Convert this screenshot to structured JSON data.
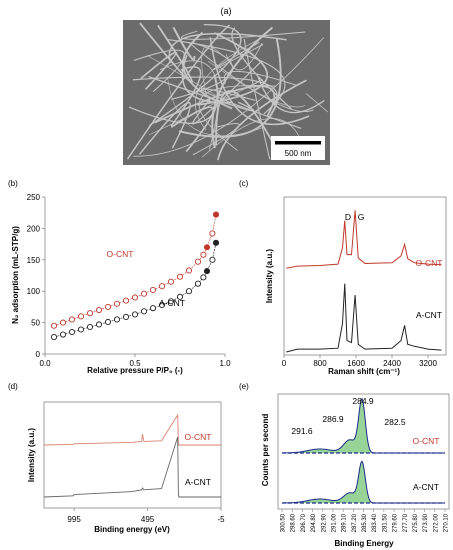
{
  "panels": [
    {
      "id": "a",
      "label": "(a)",
      "scale_bar": "500 nm"
    },
    {
      "id": "b",
      "label": "(b)"
    },
    {
      "id": "c",
      "label": "(c)"
    },
    {
      "id": "d",
      "label": "(d)"
    },
    {
      "id": "e",
      "label": "(e)"
    }
  ],
  "colors": {
    "o_cnt": "#c0392b",
    "a_cnt": "#222222",
    "fill": "#44b044",
    "fit": "#1a2b8a"
  },
  "chart_data": [
    {
      "panel": "b",
      "type": "scatter",
      "xlabel": "Relative pressure P/P₀ (-)",
      "ylabel": "N₂ adsorption (mL-STP/g)",
      "xlim": [
        0,
        1
      ],
      "ylim": [
        0,
        250
      ],
      "xticks": [
        "0.0",
        "0.5",
        "1.0"
      ],
      "yticks": [
        "0",
        "50",
        "100",
        "150",
        "200",
        "250"
      ],
      "series": [
        {
          "name": "O-CNT",
          "x": [
            0.05,
            0.1,
            0.15,
            0.2,
            0.25,
            0.3,
            0.35,
            0.4,
            0.45,
            0.5,
            0.55,
            0.6,
            0.65,
            0.7,
            0.75,
            0.8,
            0.85,
            0.88,
            0.9,
            0.93,
            0.95
          ],
          "y": [
            45,
            50,
            55,
            60,
            65,
            70,
            75,
            80,
            85,
            90,
            96,
            102,
            108,
            115,
            123,
            133,
            147,
            158,
            170,
            192,
            222
          ]
        },
        {
          "name": "A-CNT",
          "x": [
            0.05,
            0.1,
            0.15,
            0.2,
            0.25,
            0.3,
            0.35,
            0.4,
            0.45,
            0.5,
            0.55,
            0.6,
            0.65,
            0.7,
            0.75,
            0.8,
            0.85,
            0.88,
            0.9,
            0.93,
            0.95
          ],
          "y": [
            27,
            31,
            35,
            39,
            43,
            47,
            51,
            55,
            59,
            63,
            68,
            73,
            78,
            84,
            91,
            100,
            112,
            122,
            132,
            150,
            177
          ]
        }
      ]
    },
    {
      "panel": "c",
      "type": "line",
      "xlabel": "Raman shift (cm⁻¹)",
      "ylabel": "Intensity (a.u.)",
      "xlim": [
        0,
        3600
      ],
      "xticks": [
        "0",
        "800",
        "1600",
        "2400",
        "3200"
      ],
      "peak_labels": [
        "D",
        "G"
      ],
      "series": [
        {
          "name": "O-CNT",
          "x": [
            50,
            300,
            800,
            1200,
            1300,
            1350,
            1400,
            1500,
            1580,
            1650,
            1800,
            2400,
            2600,
            2680,
            2750,
            2900,
            3200,
            3500
          ],
          "y": [
            0.1,
            0.13,
            0.14,
            0.16,
            0.4,
            0.8,
            0.3,
            0.3,
            0.95,
            0.25,
            0.17,
            0.18,
            0.28,
            0.45,
            0.24,
            0.18,
            0.16,
            0.15
          ]
        },
        {
          "name": "A-CNT",
          "x": [
            50,
            300,
            800,
            1200,
            1300,
            1350,
            1400,
            1500,
            1580,
            1650,
            1800,
            2400,
            2600,
            2680,
            2750,
            2900,
            3200,
            3500
          ],
          "y": [
            0.0,
            0.03,
            0.03,
            0.04,
            0.3,
            0.72,
            0.12,
            0.1,
            0.6,
            0.08,
            0.03,
            0.04,
            0.12,
            0.28,
            0.08,
            0.06,
            0.03,
            0.02
          ]
        }
      ]
    },
    {
      "panel": "d",
      "type": "line",
      "xlabel": "Binding energy (eV)",
      "ylabel": "Intensity (a.u.)",
      "xlim": [
        1200,
        -5
      ],
      "xticks": [
        "995",
        "495",
        "-5"
      ],
      "series": [
        {
          "name": "O-CNT",
          "x": [
            1200,
            1000,
            995,
            600,
            535,
            530,
            520,
            400,
            290,
            285,
            282,
            250,
            -5
          ],
          "y": [
            0.0,
            0.02,
            0.04,
            0.09,
            0.12,
            0.36,
            0.12,
            0.14,
            1.0,
            0.05,
            0.0,
            0.0,
            0.0
          ]
        },
        {
          "name": "A-CNT",
          "x": [
            1200,
            1000,
            995,
            600,
            535,
            530,
            520,
            400,
            290,
            285,
            282,
            250,
            -5
          ],
          "y": [
            0.0,
            0.02,
            0.04,
            0.09,
            0.12,
            0.15,
            0.12,
            0.14,
            1.0,
            0.05,
            0.0,
            0.0,
            0.0
          ]
        }
      ]
    },
    {
      "panel": "e",
      "type": "area",
      "xlabel": "Binding Energy",
      "ylabel": "Counts per second",
      "xticks": [
        "300.50",
        "298.60",
        "296.70",
        "294.80",
        "292.90",
        "291.00",
        "289.10",
        "287.20",
        "285.30",
        "283.40",
        "281.50",
        "279.60",
        "277.70",
        "275.80",
        "273.90",
        "272.00",
        "270.10"
      ],
      "peaks": [
        "284.9",
        "286.9",
        "291.6",
        "282.5"
      ],
      "series": [
        {
          "name": "O-CNT"
        },
        {
          "name": "A-CNT"
        }
      ]
    }
  ]
}
